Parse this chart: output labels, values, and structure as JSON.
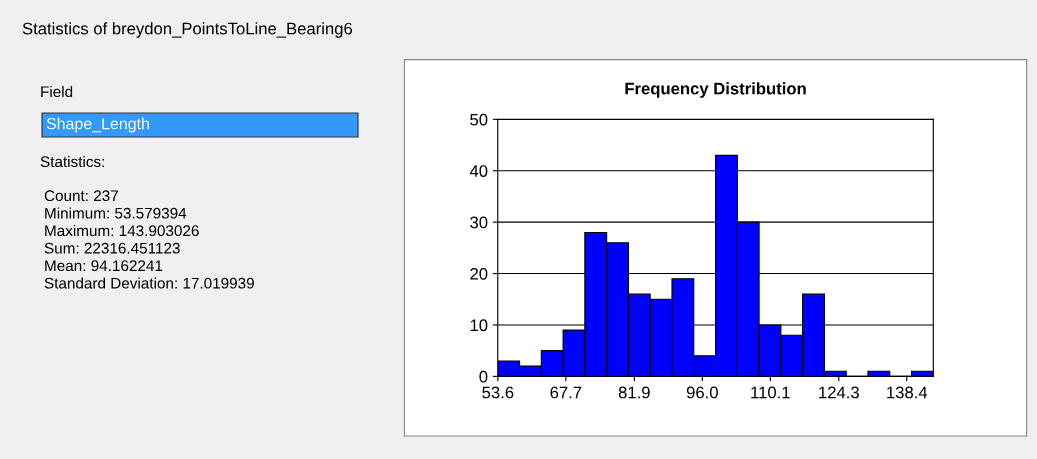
{
  "chart_data": [
    {
      "type": "other",
      "title": "Statistics of breydon_PointsToLine_Bearing6",
      "annotations": [
        "Field",
        "Shape_Length",
        "Statistics:",
        "Count: 237",
        "Minimum: 53.579394",
        "Maximum: 143.903026",
        "Sum: 22316.451123",
        "Mean: 94.162241",
        "Standard Deviation: 17.019939"
      ]
    },
    {
      "type": "histogram",
      "title": "Frequency Distribution",
      "bins": [
        53.58,
        58.1,
        62.61,
        67.13,
        71.64,
        76.16,
        80.68,
        85.19,
        89.71,
        94.22,
        98.74,
        103.26,
        107.77,
        112.29,
        116.8,
        121.32,
        125.84,
        130.35,
        134.87,
        139.39,
        143.9
      ],
      "values": [
        3,
        2,
        5,
        9,
        28,
        26,
        16,
        15,
        19,
        4,
        43,
        30,
        10,
        8,
        16,
        1,
        0,
        1,
        0,
        1
      ],
      "color": "#0000ff",
      "xlim": [
        53.58,
        143.9
      ],
      "xticks": [
        53.6,
        67.7,
        81.9,
        {
          "value": 96.0,
          "label": "96.0"
        },
        110.1,
        124.3,
        138.4
      ],
      "ylim": [
        0,
        50
      ],
      "yticks": [
        0,
        10,
        20,
        30,
        40,
        50
      ],
      "grid": "y"
    }
  ]
}
